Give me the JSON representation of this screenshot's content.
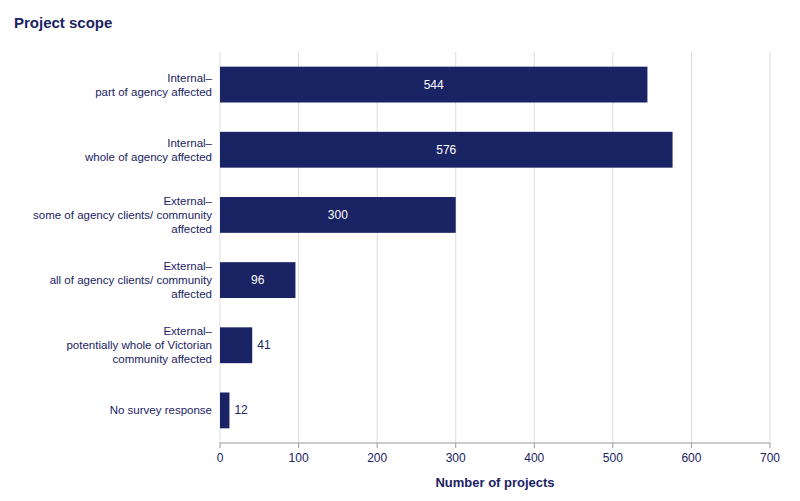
{
  "chart_data": {
    "type": "bar",
    "orientation": "horizontal",
    "title": "Project scope",
    "xlabel": "Number of projects",
    "categories": [
      "No survey response",
      "External–\npotentially whole of Victorian\ncommunity affected",
      "External–\nall of agency clients/ community\naffected",
      "External–\nsome of agency clients/ community\naffected",
      "Internal–\nwhole of agency affected",
      "Internal–\npart of agency affected"
    ],
    "values": [
      12,
      41,
      96,
      300,
      576,
      544
    ],
    "color": "#1a2363",
    "xlim": [
      0,
      700
    ],
    "xticks": [
      0,
      100,
      200,
      300,
      400,
      500,
      600,
      700
    ],
    "grid": true,
    "data_labels": true
  }
}
